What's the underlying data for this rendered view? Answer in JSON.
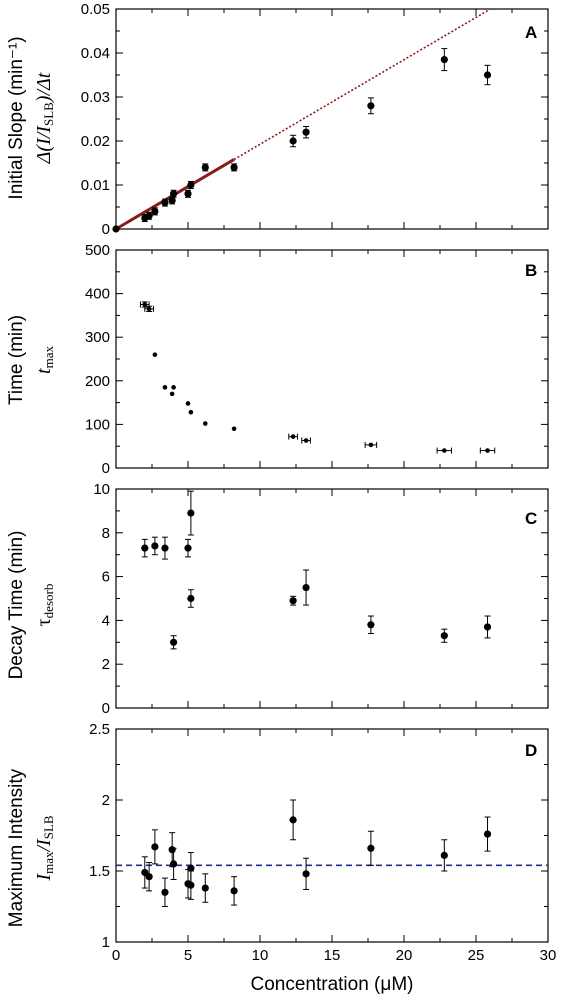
{
  "chart_data": [
    {
      "id": "A",
      "type": "scatter",
      "panel_label": "A",
      "ylabel": "Initial Slope (min⁻¹)",
      "ylabel_math": "Δ(I/I_SLB)/Δt",
      "ylim": [
        0,
        0.05
      ],
      "yticks": [
        0,
        0.01,
        0.02,
        0.03,
        0.04,
        0.05
      ],
      "ytick_labels": [
        "0",
        "0.01",
        "0.02",
        "0.03",
        "0.04",
        "0.05"
      ],
      "xlim": [
        0,
        30
      ],
      "points": [
        {
          "x": 0,
          "y": 0,
          "err": 0
        },
        {
          "x": 2.0,
          "y": 0.0025,
          "err": 0.0008
        },
        {
          "x": 2.3,
          "y": 0.003,
          "err": 0.0008
        },
        {
          "x": 2.7,
          "y": 0.004,
          "err": 0.0008
        },
        {
          "x": 3.4,
          "y": 0.006,
          "err": 0.0008
        },
        {
          "x": 3.9,
          "y": 0.0065,
          "err": 0.0008
        },
        {
          "x": 4.0,
          "y": 0.008,
          "err": 0.0008
        },
        {
          "x": 5.0,
          "y": 0.008,
          "err": 0.0008
        },
        {
          "x": 5.2,
          "y": 0.01,
          "err": 0.0008
        },
        {
          "x": 6.2,
          "y": 0.014,
          "err": 0.0008
        },
        {
          "x": 8.2,
          "y": 0.014,
          "err": 0.0008
        },
        {
          "x": 12.3,
          "y": 0.02,
          "err": 0.0013
        },
        {
          "x": 13.2,
          "y": 0.022,
          "err": 0.0013
        },
        {
          "x": 17.7,
          "y": 0.028,
          "err": 0.0018
        },
        {
          "x": 22.8,
          "y": 0.0385,
          "err": 0.0025
        },
        {
          "x": 25.8,
          "y": 0.035,
          "err": 0.0022
        }
      ],
      "fit_solid": {
        "x": [
          0,
          8.2
        ],
        "y": [
          0,
          0.0158
        ],
        "color": "#8b1a1a"
      },
      "fit_dotted": {
        "x": [
          8.2,
          26.0
        ],
        "y": [
          0.0158,
          0.05
        ],
        "color": "#8b1a1a"
      }
    },
    {
      "id": "B",
      "type": "scatter",
      "panel_label": "B",
      "ylabel": "Time (min)",
      "ylabel_math": "t_max",
      "ylim": [
        0,
        500
      ],
      "yticks": [
        0,
        100,
        200,
        300,
        400,
        500
      ],
      "ytick_labels": [
        "0",
        "100",
        "200",
        "300",
        "400",
        "500"
      ],
      "xlim": [
        0,
        30
      ],
      "points": [
        {
          "x": 2.0,
          "y": 375,
          "xerr": 0.3,
          "err": 6
        },
        {
          "x": 2.3,
          "y": 365,
          "xerr": 0.3,
          "err": 6
        },
        {
          "x": 2.7,
          "y": 260,
          "xerr": 0.0,
          "err": 0
        },
        {
          "x": 3.4,
          "y": 185,
          "xerr": 0.0,
          "err": 0
        },
        {
          "x": 3.9,
          "y": 170,
          "xerr": 0.0,
          "err": 0
        },
        {
          "x": 4.0,
          "y": 185,
          "xerr": 0.0,
          "err": 0
        },
        {
          "x": 5.0,
          "y": 148,
          "xerr": 0.0,
          "err": 0
        },
        {
          "x": 5.2,
          "y": 128,
          "xerr": 0.0,
          "err": 0
        },
        {
          "x": 6.2,
          "y": 102,
          "xerr": 0.0,
          "err": 0
        },
        {
          "x": 8.2,
          "y": 90,
          "xerr": 0.0,
          "err": 0
        },
        {
          "x": 12.3,
          "y": 72,
          "xerr": 0.3,
          "err": 0
        },
        {
          "x": 13.2,
          "y": 63,
          "xerr": 0.3,
          "err": 0
        },
        {
          "x": 17.7,
          "y": 53,
          "xerr": 0.4,
          "err": 0
        },
        {
          "x": 22.8,
          "y": 40,
          "xerr": 0.5,
          "err": 0
        },
        {
          "x": 25.8,
          "y": 40,
          "xerr": 0.5,
          "err": 0
        }
      ]
    },
    {
      "id": "C",
      "type": "scatter",
      "panel_label": "C",
      "ylabel": "Decay Time (min)",
      "ylabel_math": "τ_desorb",
      "ylim": [
        0,
        10
      ],
      "yticks": [
        0,
        2,
        4,
        6,
        8,
        10
      ],
      "ytick_labels": [
        "0",
        "2",
        "4",
        "6",
        "8",
        "10"
      ],
      "xlim": [
        0,
        30
      ],
      "points": [
        {
          "x": 2.0,
          "y": 7.3,
          "err": 0.4
        },
        {
          "x": 2.7,
          "y": 7.4,
          "err": 0.4
        },
        {
          "x": 3.4,
          "y": 7.3,
          "err": 0.5
        },
        {
          "x": 4.0,
          "y": 3.0,
          "err": 0.3
        },
        {
          "x": 5.0,
          "y": 7.3,
          "err": 0.4
        },
        {
          "x": 5.2,
          "y": 8.9,
          "err": 1.0
        },
        {
          "x": 5.2,
          "y": 5.0,
          "err": 0.4
        },
        {
          "x": 12.3,
          "y": 4.9,
          "err": 0.2
        },
        {
          "x": 13.2,
          "y": 5.5,
          "err": 0.8
        },
        {
          "x": 17.7,
          "y": 3.8,
          "err": 0.4
        },
        {
          "x": 22.8,
          "y": 3.3,
          "err": 0.3
        },
        {
          "x": 25.8,
          "y": 3.7,
          "err": 0.5
        }
      ]
    },
    {
      "id": "D",
      "type": "scatter",
      "panel_label": "D",
      "ylabel": "Maximum Intensity",
      "ylabel_math": "I_max/I_SLB",
      "ylim": [
        1,
        2.5
      ],
      "yticks": [
        1,
        1.5,
        2,
        2.5
      ],
      "ytick_labels": [
        "1",
        "1.5",
        "2",
        "2.5"
      ],
      "xlim": [
        0,
        30
      ],
      "xticks": [
        0,
        5,
        10,
        15,
        20,
        25,
        30
      ],
      "xtick_labels": [
        "0",
        "5",
        "10",
        "15",
        "20",
        "25",
        "30"
      ],
      "xlabel": "Concentration (μM)",
      "points": [
        {
          "x": 2.0,
          "y": 1.49,
          "err": 0.11
        },
        {
          "x": 2.3,
          "y": 1.46,
          "err": 0.1
        },
        {
          "x": 2.7,
          "y": 1.67,
          "err": 0.12
        },
        {
          "x": 3.4,
          "y": 1.35,
          "err": 0.1
        },
        {
          "x": 3.9,
          "y": 1.65,
          "err": 0.12
        },
        {
          "x": 4.0,
          "y": 1.55,
          "err": 0.11
        },
        {
          "x": 5.0,
          "y": 1.41,
          "err": 0.1
        },
        {
          "x": 5.2,
          "y": 1.52,
          "err": 0.11
        },
        {
          "x": 5.2,
          "y": 1.4,
          "err": 0.1
        },
        {
          "x": 6.2,
          "y": 1.38,
          "err": 0.1
        },
        {
          "x": 8.2,
          "y": 1.36,
          "err": 0.1
        },
        {
          "x": 12.3,
          "y": 1.86,
          "err": 0.14
        },
        {
          "x": 13.2,
          "y": 1.48,
          "err": 0.11
        },
        {
          "x": 17.7,
          "y": 1.66,
          "err": 0.12
        },
        {
          "x": 22.8,
          "y": 1.61,
          "err": 0.11
        },
        {
          "x": 25.8,
          "y": 1.76,
          "err": 0.12
        }
      ],
      "reference_line": {
        "y": 1.54,
        "style": "dashed",
        "color": "#1f2f8f"
      }
    }
  ]
}
